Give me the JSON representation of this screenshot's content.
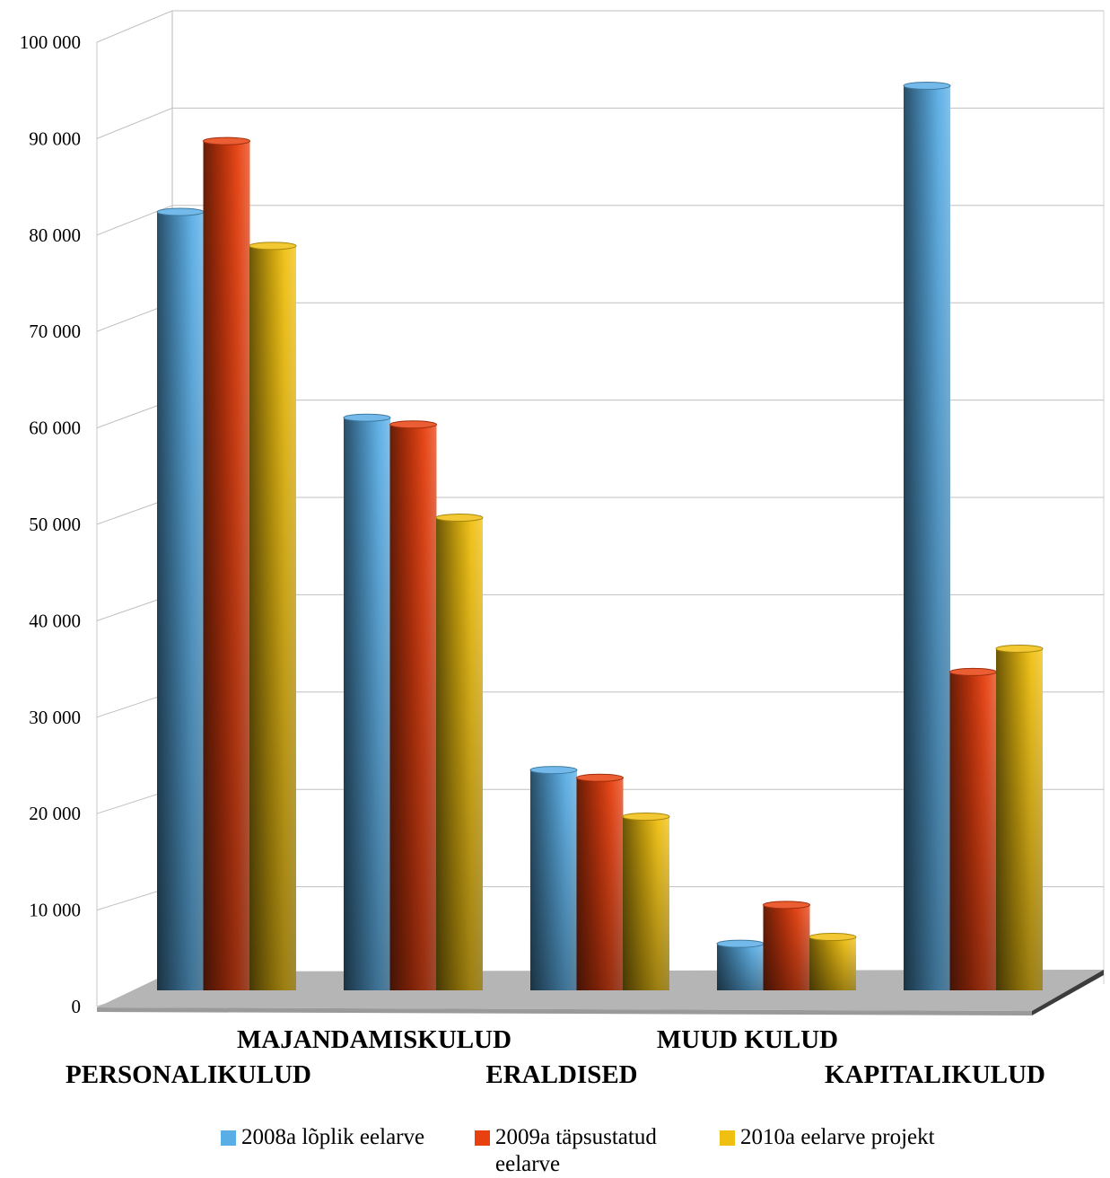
{
  "chart_data": {
    "type": "bar",
    "categories": [
      "PERSONALIKULUD",
      "MAJANDAMISKULUD",
      "ERALDISED",
      "MUUD KULUD",
      "KAPITALIKULUD"
    ],
    "series": [
      {
        "name": "2008a lõplik eelarve",
        "values": [
          80200,
          59000,
          22700,
          4800,
          93200
        ],
        "color": "#5aaee6"
      },
      {
        "name": "2009a täpsustatud eelarve",
        "values": [
          87500,
          58300,
          21900,
          8800,
          32800
        ],
        "color": "#e8400f"
      },
      {
        "name": "2010a eelarve projekt",
        "values": [
          76700,
          48700,
          17900,
          5500,
          35200
        ],
        "color": "#f0c010"
      }
    ],
    "y_ticks": [
      "0",
      "10 000",
      "20 000",
      "30 000",
      "40 000",
      "50 000",
      "60 000",
      "70 000",
      "80 000",
      "90 000",
      "100 000"
    ],
    "ylim": [
      0,
      100000
    ],
    "grid": true,
    "legend_position": "bottom",
    "style": "3d-cylinder"
  }
}
